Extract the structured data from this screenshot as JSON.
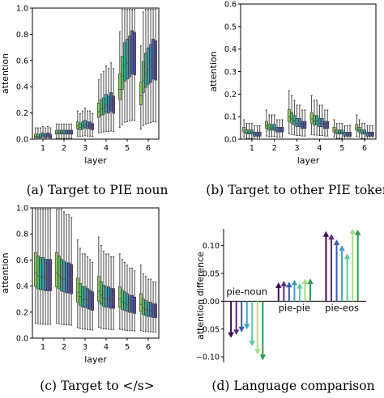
{
  "chart_data": [
    {
      "type": "box",
      "panel": "a",
      "caption": "(a) Target to PIE noun",
      "xlabel": "layer",
      "ylabel": "attention",
      "categories": [
        "1",
        "2",
        "3",
        "4",
        "5",
        "6"
      ],
      "ylim": [
        0,
        1.0
      ],
      "yticks": [
        "0.0",
        "0.2",
        "0.4",
        "0.6",
        "0.8",
        "1.0"
      ],
      "medians": [
        [
          0.02,
          0.02,
          0.02,
          0.03,
          0.02,
          0.03,
          0.02
        ],
        [
          0.05,
          0.05,
          0.05,
          0.05,
          0.05,
          0.05,
          0.05
        ],
        [
          0.1,
          0.09,
          0.1,
          0.11,
          0.1,
          0.1,
          0.09
        ],
        [
          0.21,
          0.23,
          0.24,
          0.26,
          0.25,
          0.27,
          0.25
        ],
        [
          0.38,
          0.48,
          0.56,
          0.58,
          0.6,
          0.63,
          0.62
        ],
        [
          0.33,
          0.45,
          0.5,
          0.53,
          0.55,
          0.58,
          0.57
        ]
      ]
    },
    {
      "type": "box",
      "panel": "b",
      "caption": "(b) Target to other PIE tokens",
      "xlabel": "layer",
      "ylabel": "attention",
      "categories": [
        "1",
        "2",
        "3",
        "4",
        "5",
        "6"
      ],
      "ylim": [
        0,
        0.6
      ],
      "yticks": [
        "0.0",
        "0.1",
        "0.2",
        "0.3",
        "0.4",
        "0.5",
        "0.6"
      ],
      "medians": [
        [
          0.04,
          0.03,
          0.03,
          0.03,
          0.02,
          0.02,
          0.02
        ],
        [
          0.06,
          0.05,
          0.05,
          0.05,
          0.04,
          0.04,
          0.04
        ],
        [
          0.1,
          0.09,
          0.08,
          0.07,
          0.07,
          0.06,
          0.06
        ],
        [
          0.09,
          0.08,
          0.08,
          0.07,
          0.07,
          0.06,
          0.06
        ],
        [
          0.04,
          0.03,
          0.03,
          0.03,
          0.02,
          0.02,
          0.02
        ],
        [
          0.05,
          0.04,
          0.03,
          0.03,
          0.02,
          0.02,
          0.02
        ]
      ]
    },
    {
      "type": "box",
      "panel": "c",
      "caption": "(c) Target to </s>",
      "xlabel": "layer",
      "ylabel": "attention",
      "categories": [
        "1",
        "2",
        "3",
        "4",
        "5",
        "6"
      ],
      "ylim": [
        0,
        1.0
      ],
      "yticks": [
        "0.0",
        "0.2",
        "0.4",
        "0.6",
        "0.8",
        "1.0"
      ],
      "medians": [
        [
          0.5,
          0.48,
          0.47,
          0.47,
          0.46,
          0.46,
          0.46
        ],
        [
          0.5,
          0.48,
          0.46,
          0.45,
          0.44,
          0.44,
          0.43
        ],
        [
          0.35,
          0.32,
          0.3,
          0.3,
          0.29,
          0.28,
          0.27
        ],
        [
          0.36,
          0.33,
          0.31,
          0.3,
          0.3,
          0.29,
          0.29
        ],
        [
          0.3,
          0.28,
          0.27,
          0.26,
          0.25,
          0.25,
          0.24
        ],
        [
          0.26,
          0.23,
          0.22,
          0.21,
          0.21,
          0.2,
          0.2
        ]
      ]
    },
    {
      "type": "arrow",
      "panel": "d",
      "caption": "(d) Language comparison",
      "ylabel": "attention difference",
      "ylim": [
        -0.11,
        0.13
      ],
      "yticks": [
        "−0.10",
        "−0.05",
        "0.00",
        "0.05",
        "0.10"
      ],
      "groups": [
        {
          "label": "pie-noun",
          "values": [
            -0.065,
            -0.06,
            -0.055,
            -0.05,
            -0.08,
            -0.095,
            -0.105
          ]
        },
        {
          "label": "pie-pie",
          "values": [
            0.033,
            0.036,
            0.034,
            0.038,
            0.032,
            0.04,
            0.04
          ]
        },
        {
          "label": "pie-eos",
          "values": [
            0.125,
            0.12,
            0.11,
            0.1,
            0.085,
            0.13,
            0.128
          ]
        }
      ]
    }
  ],
  "colors": {
    "boxes": [
      "#90c35a",
      "#5ab568",
      "#38a882",
      "#4096a6",
      "#4e78a8",
      "#4a5aa0",
      "#5a4a95"
    ],
    "arrows": [
      "#440154",
      "#5b2a86",
      "#3b5ba5",
      "#41a0c8",
      "#61c9a0",
      "#a8db8a",
      "#2c9a4e"
    ]
  }
}
